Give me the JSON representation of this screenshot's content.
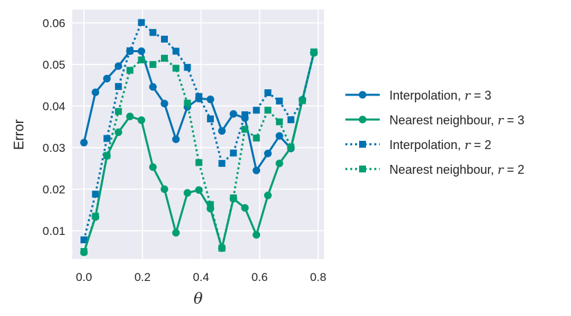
{
  "chart_data": {
    "type": "line",
    "xlabel": "θ",
    "ylabel": "Error",
    "xlim": [
      -0.04,
      0.82
    ],
    "ylim": [
      0.0032,
      0.0632
    ],
    "xticks": [
      0.0,
      0.2,
      0.4,
      0.6,
      0.8
    ],
    "xtick_labels": [
      "0.0",
      "0.2",
      "0.4",
      "0.6",
      "0.8"
    ],
    "yticks": [
      0.01,
      0.02,
      0.03,
      0.04,
      0.05,
      0.06
    ],
    "ytick_labels": [
      "0.01",
      "0.02",
      "0.03",
      "0.04",
      "0.05",
      "0.06"
    ],
    "grid": true,
    "legend_position": "right, outside plot",
    "x": [
      0.0,
      0.0393,
      0.0785,
      0.1178,
      0.1571,
      0.1963,
      0.2356,
      0.2749,
      0.3142,
      0.3534,
      0.3927,
      0.432,
      0.4712,
      0.5105,
      0.5498,
      0.589,
      0.6283,
      0.6676,
      0.7069,
      0.7461,
      0.7854
    ],
    "series": [
      {
        "name": "Interpolation, r = 3",
        "label_main": "Interpolation, ",
        "label_var": "r",
        "label_rest": " = 3",
        "color": "#0072b2",
        "linestyle": "solid",
        "marker": "circle",
        "values": [
          0.0312,
          0.0433,
          0.0466,
          0.0496,
          0.0532,
          0.0532,
          0.0446,
          0.0406,
          0.032,
          0.0398,
          0.0418,
          0.0416,
          0.034,
          0.0381,
          0.0371,
          0.0245,
          0.0286,
          0.0328,
          0.0298,
          0.0415,
          0.0528
        ]
      },
      {
        "name": "Nearest neighbour, r = 3",
        "label_main": "Nearest neighbour, ",
        "label_var": "r",
        "label_rest": " = 3",
        "color": "#009e73",
        "linestyle": "solid",
        "marker": "circle",
        "values": [
          0.0048,
          0.0133,
          0.028,
          0.0337,
          0.0375,
          0.0366,
          0.0253,
          0.02,
          0.0095,
          0.0191,
          0.0198,
          0.0153,
          0.0058,
          0.0177,
          0.0155,
          0.009,
          0.0185,
          0.0262,
          0.03,
          0.0415,
          0.0528
        ]
      },
      {
        "name": "Interpolation, r = 2",
        "label_main": "Interpolation, ",
        "label_var": "r",
        "label_rest": " = 2",
        "color": "#0072b2",
        "linestyle": "dotted",
        "marker": "square",
        "values": [
          0.0078,
          0.0188,
          0.0322,
          0.0447,
          0.0533,
          0.0601,
          0.0577,
          0.0561,
          0.0532,
          0.0493,
          0.0423,
          0.0369,
          0.0262,
          0.0287,
          0.0379,
          0.039,
          0.0432,
          0.0412,
          0.0367,
          0.0413,
          0.053
        ]
      },
      {
        "name": "Nearest neighbour, r = 2",
        "label_main": "Nearest neighbour, ",
        "label_var": "r",
        "label_rest": " = 2",
        "color": "#009e73",
        "linestyle": "dotted",
        "marker": "square",
        "values": [
          0.005,
          0.0135,
          0.0281,
          0.0387,
          0.0486,
          0.0511,
          0.05,
          0.0515,
          0.0491,
          0.0407,
          0.0264,
          0.0163,
          0.0058,
          0.0179,
          0.0344,
          0.0323,
          0.039,
          0.0362,
          0.0301,
          0.0413,
          0.053
        ]
      }
    ]
  }
}
